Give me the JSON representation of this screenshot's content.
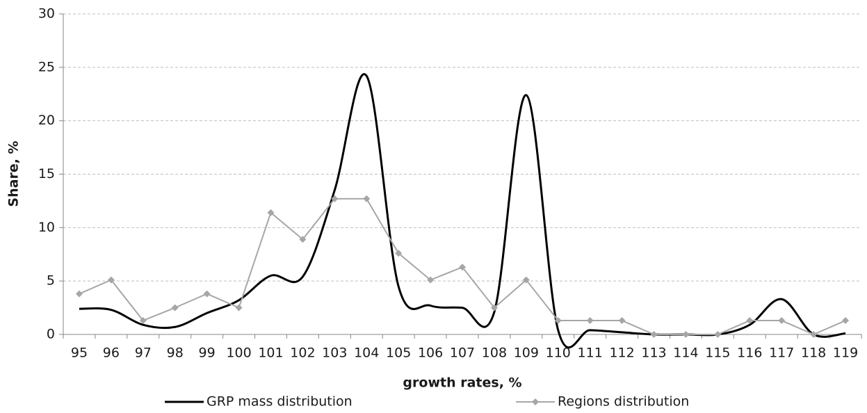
{
  "chart_data": {
    "type": "line",
    "x_label": "growth rates, %",
    "y_label": "Share, %",
    "categories": [
      "95",
      "96",
      "97",
      "98",
      "99",
      "100",
      "101",
      "102",
      "103",
      "104",
      "105",
      "106",
      "107",
      "108",
      "109",
      "110",
      "111",
      "112",
      "113",
      "114",
      "115",
      "116",
      "117",
      "118",
      "119"
    ],
    "series": [
      {
        "name": "GRP mass distribution",
        "color": "#000000",
        "smooth": true,
        "values": [
          2.4,
          2.3,
          0.9,
          0.7,
          2.0,
          3.2,
          5.5,
          5.4,
          13.5,
          24.2,
          4.5,
          2.7,
          2.5,
          2.1,
          22.4,
          0.4,
          0.4,
          0.2,
          0.0,
          0.0,
          0.0,
          0.9,
          3.3,
          0.0,
          0.1
        ]
      },
      {
        "name": "Regions distribution",
        "color": "#a6a6a6",
        "marker": "diamond",
        "values": [
          3.8,
          5.1,
          1.3,
          2.5,
          3.8,
          2.5,
          11.4,
          8.9,
          12.7,
          12.7,
          7.6,
          5.1,
          6.3,
          2.5,
          5.1,
          1.3,
          1.3,
          1.3,
          0,
          0,
          0,
          1.3,
          1.3,
          0,
          1.3
        ]
      }
    ],
    "ylim": [
      0,
      30
    ],
    "yticks": [
      0,
      5,
      10,
      15,
      20,
      25,
      30
    ],
    "grid": true,
    "legend": "bottom"
  }
}
